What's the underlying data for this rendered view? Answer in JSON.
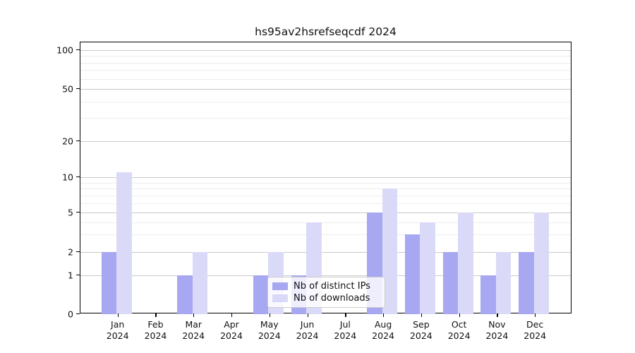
{
  "chart_data": {
    "type": "bar",
    "title": "hs95av2hsrefseqcdf 2024",
    "categories": [
      "Jan",
      "Feb",
      "Mar",
      "Apr",
      "May",
      "Jun",
      "Jul",
      "Aug",
      "Sep",
      "Oct",
      "Nov",
      "Dec"
    ],
    "category_year": "2024",
    "series": [
      {
        "name": "Nb of distinct IPs",
        "color": "#a8a8f2",
        "values": [
          2,
          0,
          1,
          0,
          1,
          1,
          0,
          5,
          3,
          2,
          1,
          2
        ]
      },
      {
        "name": "Nb of downloads",
        "color": "#dadaf8",
        "values": [
          11,
          0,
          2,
          0,
          2,
          4,
          0,
          8,
          4,
          5,
          2,
          5
        ]
      }
    ],
    "y_ticks": [
      0,
      1,
      2,
      5,
      10,
      20,
      50,
      100
    ],
    "y_minor_ticks": [
      3,
      4,
      6,
      7,
      8,
      9,
      30,
      40,
      60,
      70,
      80,
      90
    ],
    "yscale": "symlog",
    "ylim": [
      0,
      115
    ],
    "grid": true,
    "legend_position": "lower center"
  },
  "colors": {
    "bar_ips": "#a8a8f2",
    "bar_downloads": "#dadaf8",
    "major_grid": "#c9c9c9",
    "minor_grid": "#ededed",
    "spine": "#000000",
    "background": "#ffffff"
  }
}
